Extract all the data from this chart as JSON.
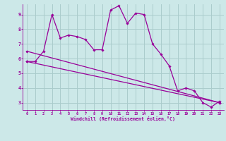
{
  "background_color": "#cce8e8",
  "grid_color": "#aacccc",
  "line_color": "#990099",
  "marker_color": "#990099",
  "xlabel": "Windchill (Refroidissement éolien,°C)",
  "xlabel_color": "#990099",
  "tick_color": "#990099",
  "xlim": [
    -0.5,
    23.5
  ],
  "ylim": [
    2.5,
    9.7
  ],
  "yticks": [
    3,
    4,
    5,
    6,
    7,
    8,
    9
  ],
  "xticks": [
    0,
    1,
    2,
    3,
    4,
    5,
    6,
    7,
    8,
    9,
    10,
    11,
    12,
    13,
    14,
    15,
    16,
    17,
    18,
    19,
    20,
    21,
    22,
    23
  ],
  "series1_x": [
    0,
    1,
    2,
    3,
    4,
    5,
    6,
    7,
    8,
    9,
    10,
    11,
    12,
    13,
    14,
    15,
    16,
    17,
    18,
    19,
    20,
    21,
    22,
    23
  ],
  "series1_y": [
    5.8,
    5.8,
    6.5,
    9.0,
    7.4,
    7.6,
    7.5,
    7.3,
    6.6,
    6.6,
    9.3,
    9.6,
    8.4,
    9.1,
    9.0,
    7.0,
    6.3,
    5.5,
    3.8,
    4.0,
    3.8,
    3.0,
    2.7,
    3.1
  ],
  "series2_x": [
    0,
    23
  ],
  "series2_y": [
    5.8,
    3.0
  ],
  "series3_x": [
    0,
    23
  ],
  "series3_y": [
    6.5,
    3.0
  ]
}
